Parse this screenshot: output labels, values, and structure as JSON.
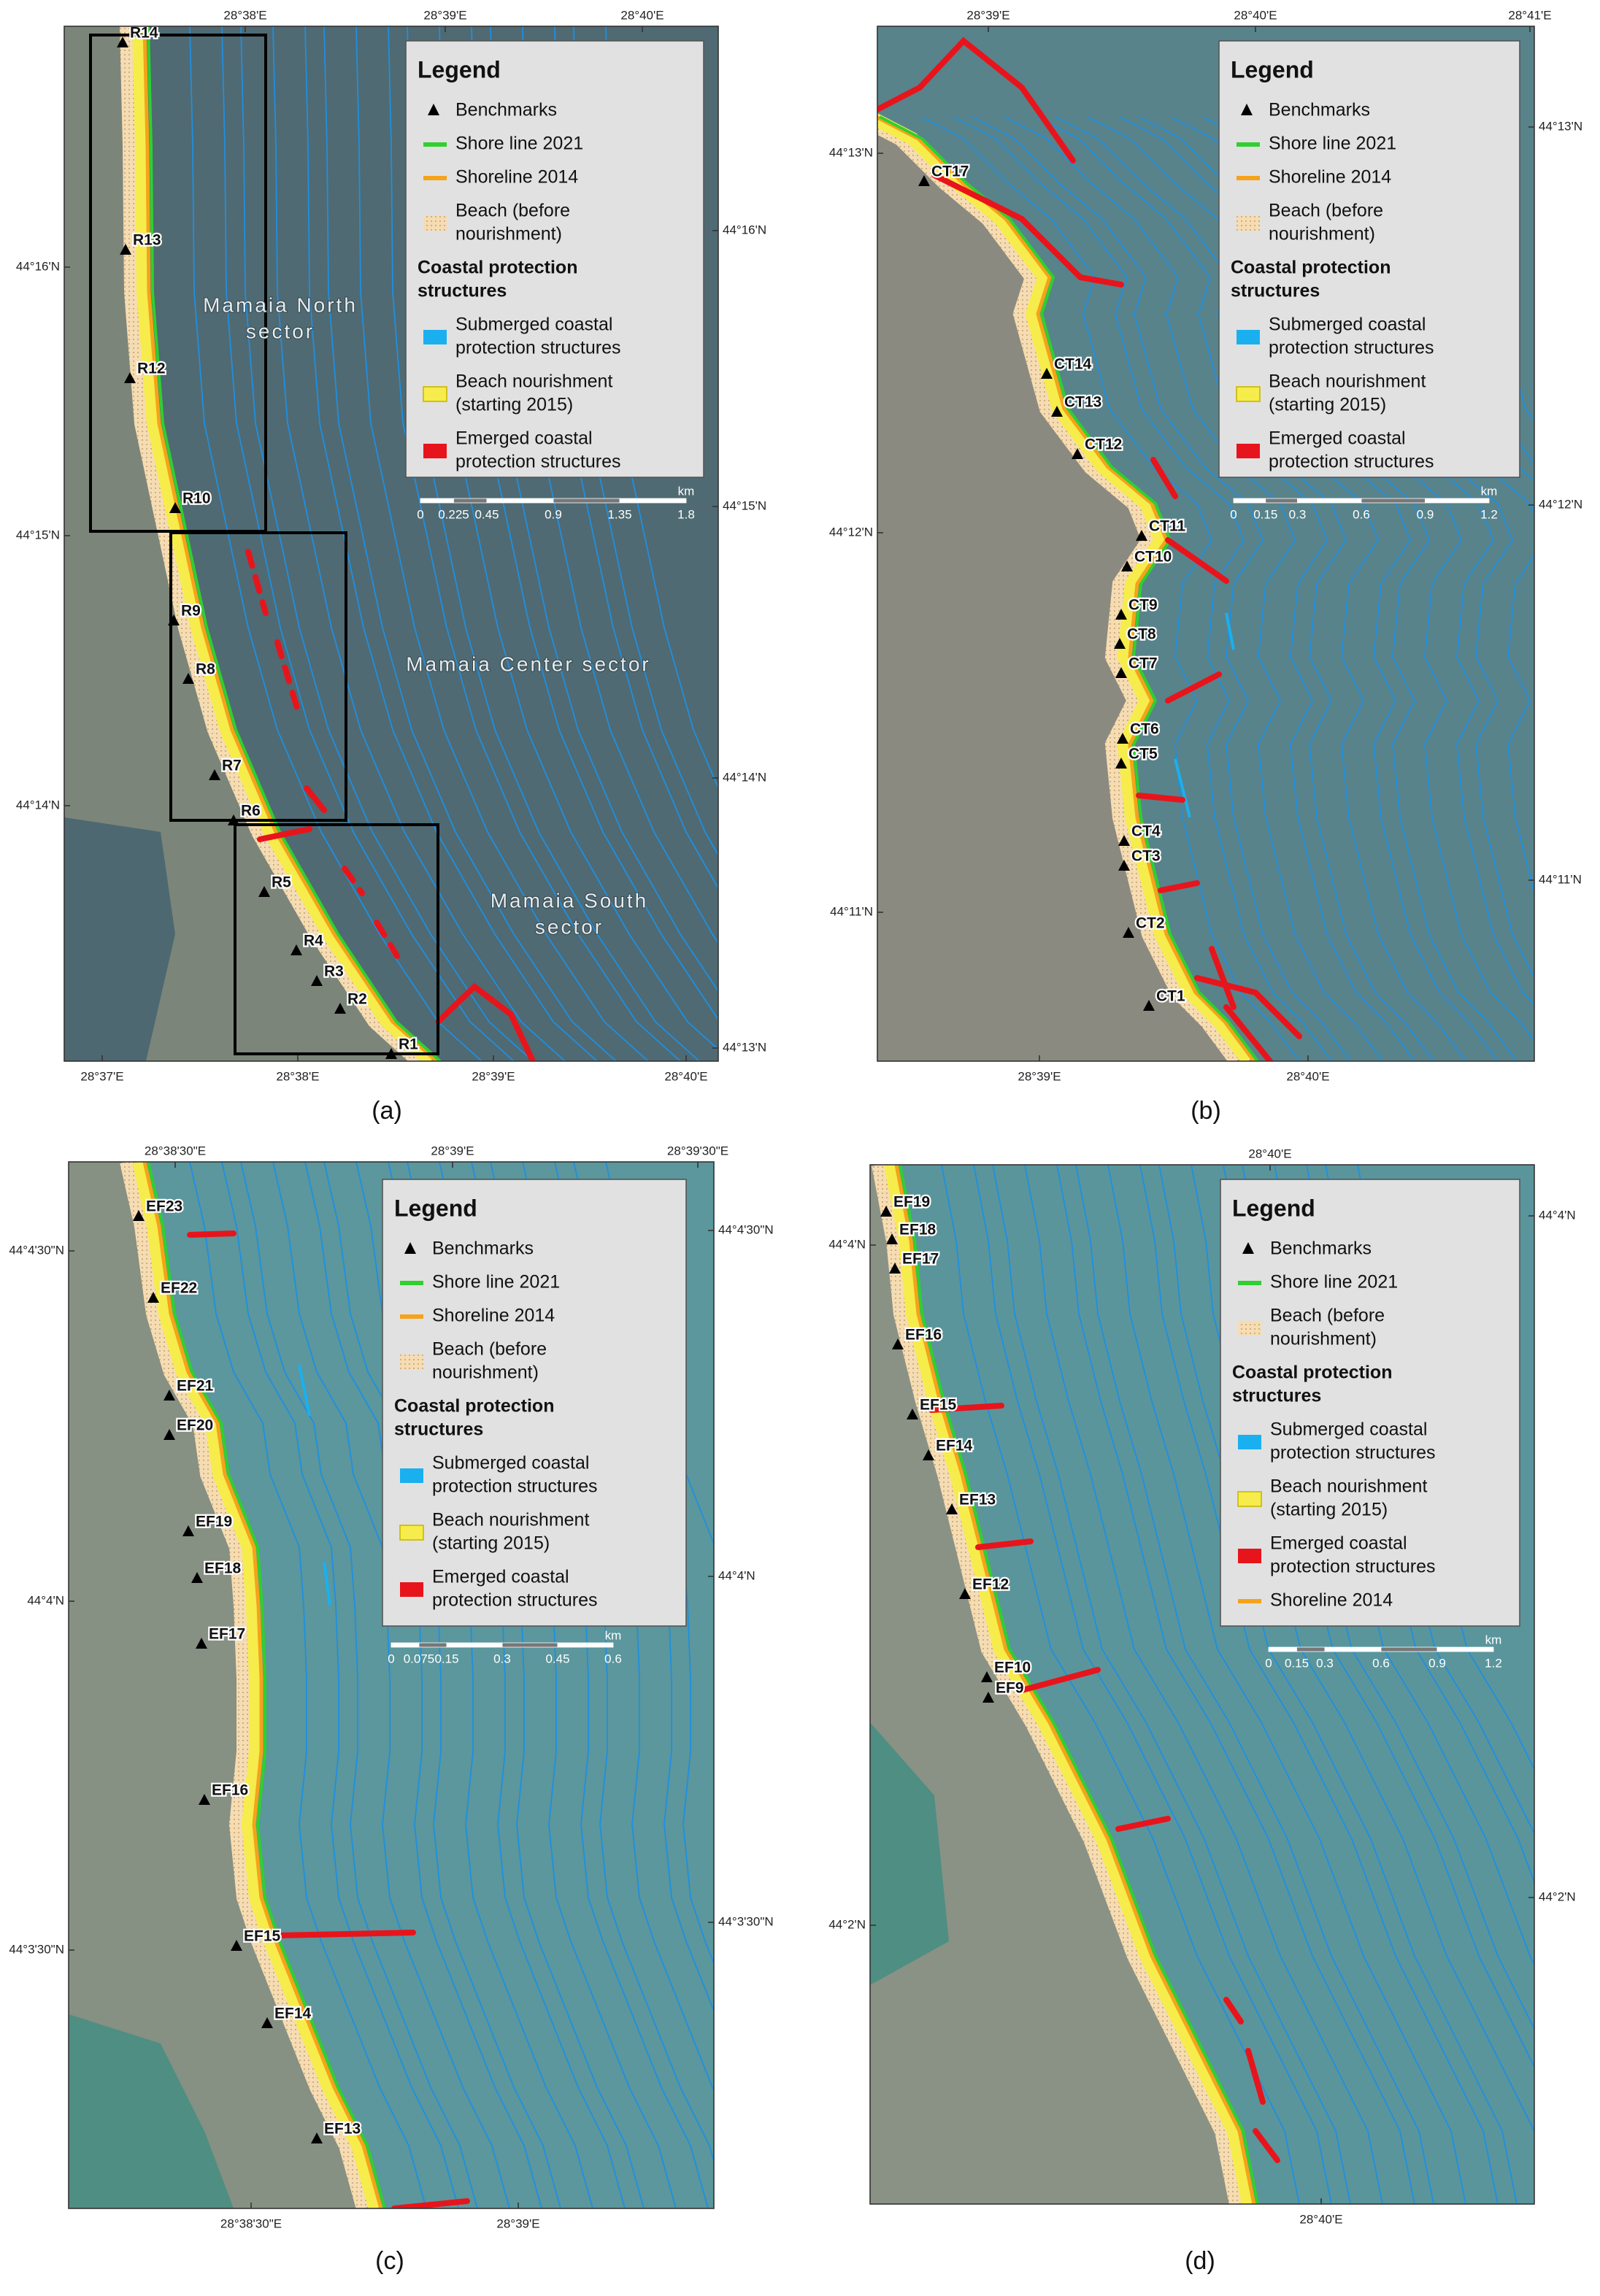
{
  "panels": [
    {
      "label": "(a)",
      "top_ticks": [
        "28°38'E",
        "28°39'E",
        "28°40'E"
      ],
      "bottom_ticks": [
        "28°37'E",
        "28°38'E",
        "28°39'E",
        "28°40'E"
      ],
      "left_ticks": [
        "44°16'N",
        "44°15'N",
        "44°14'N"
      ],
      "right_ticks": [
        "44°16'N",
        "44°15'N",
        "44°14'N",
        "44°13'N"
      ],
      "legend": {
        "title": "Legend",
        "items": [
          [
            "Benchmarks"
          ],
          [
            "Shore line 2021"
          ],
          [
            "Shoreline 2014"
          ],
          [
            "Beach (before",
            "nourishment)"
          ],
          [
            "Coastal protection",
            "structures"
          ],
          [
            "Submerged coastal",
            "protection structures"
          ],
          [
            "Beach nourishment",
            "(starting 2015)"
          ],
          [
            "Emerged coastal",
            "protection structures"
          ]
        ]
      },
      "scale": [
        0,
        0.225,
        0.45,
        0.9,
        1.35,
        1.8
      ],
      "scale_unit": "km",
      "benchmarks": [
        "R14",
        "R13",
        "R12",
        "R10",
        "R9",
        "R8",
        "R7",
        "R6",
        "R5",
        "R4",
        "R3",
        "R2",
        "R1"
      ],
      "sectors": [
        [
          "Mamaia North",
          "sector"
        ],
        [
          "Mamaia Center sector"
        ],
        [
          "Mamaia South",
          "sector"
        ]
      ]
    },
    {
      "label": "(b)",
      "top_ticks": [
        "28°39'E",
        "28°40'E",
        "28°41'E"
      ],
      "bottom_ticks": [
        "28°39'E",
        "28°40'E"
      ],
      "left_ticks": [
        "44°13'N",
        "44°12'N",
        "44°11'N"
      ],
      "right_ticks": [
        "44°13'N",
        "44°12'N",
        "44°11'N"
      ],
      "legend": {
        "title": "Legend",
        "items": [
          [
            "Benchmarks"
          ],
          [
            "Shore line 2021"
          ],
          [
            "Shoreline 2014"
          ],
          [
            "Beach (before",
            "nourishment)"
          ],
          [
            "Coastal protection",
            "structures"
          ],
          [
            "Submerged coastal",
            "protection structures"
          ],
          [
            "Beach nourishment",
            "(starting 2015)"
          ],
          [
            "Emerged coastal",
            "protection structures"
          ]
        ]
      },
      "scale": [
        0,
        0.15,
        0.3,
        0.6,
        0.9,
        1.2
      ],
      "scale_unit": "km",
      "benchmarks": [
        "CT17",
        "CT14",
        "CT13",
        "CT12",
        "CT11",
        "CT10",
        "CT9",
        "CT8",
        "CT7",
        "CT6",
        "CT5",
        "CT4",
        "CT3",
        "CT2",
        "CT1"
      ]
    },
    {
      "label": "(c)",
      "top_ticks": [
        "28°38'30\"E",
        "28°39'E",
        "28°39'30\"E"
      ],
      "bottom_ticks": [
        "28°38'30\"E",
        "28°39'E"
      ],
      "left_ticks": [
        "44°4'30\"N",
        "44°4'N",
        "44°3'30\"N"
      ],
      "right_ticks": [
        "44°4'30\"N",
        "44°4'N",
        "44°3'30\"N"
      ],
      "legend": {
        "title": "Legend",
        "items": [
          [
            "Benchmarks"
          ],
          [
            "Shore line 2021"
          ],
          [
            "Shoreline 2014"
          ],
          [
            "Beach (before",
            "nourishment)"
          ],
          [
            "Coastal protection",
            "structures"
          ],
          [
            "Submerged coastal",
            "protection structures"
          ],
          [
            "Beach nourishment",
            "(starting 2015)"
          ],
          [
            "Emerged coastal",
            "protection structures"
          ]
        ]
      },
      "scale": [
        0,
        0.075,
        0.15,
        0.3,
        0.45,
        0.6
      ],
      "scale_unit": "km",
      "benchmarks": [
        "EF23",
        "EF22",
        "EF21",
        "EF20",
        "EF19",
        "EF18",
        "EF17",
        "EF16",
        "EF15",
        "EF14",
        "EF13"
      ]
    },
    {
      "label": "(d)",
      "top_ticks": [
        "28°40'E"
      ],
      "bottom_ticks": [
        "28°40'E"
      ],
      "left_ticks": [
        "44°4'N",
        "44°2'N"
      ],
      "right_ticks": [
        "44°4'N",
        "44°2'N"
      ],
      "legend": {
        "title": "Legend",
        "items": [
          [
            "Benchmarks"
          ],
          [
            "Shore line 2021"
          ],
          [
            "Beach (before",
            "nourishment)"
          ],
          [
            "Coastal protection",
            "structures"
          ],
          [
            "Submerged coastal",
            "protection structures"
          ],
          [
            "Beach nourishment",
            "(starting 2015)"
          ],
          [
            "Emerged coastal",
            "protection structures"
          ],
          [
            "Shoreline 2014"
          ]
        ]
      },
      "scale": [
        0,
        0.15,
        0.3,
        0.6,
        0.9,
        1.2
      ],
      "scale_unit": "km",
      "benchmarks": [
        "EF19",
        "EF18",
        "EF17",
        "EF16",
        "EF15",
        "EF14",
        "EF13",
        "EF12",
        "EF10",
        "EF9"
      ]
    }
  ]
}
